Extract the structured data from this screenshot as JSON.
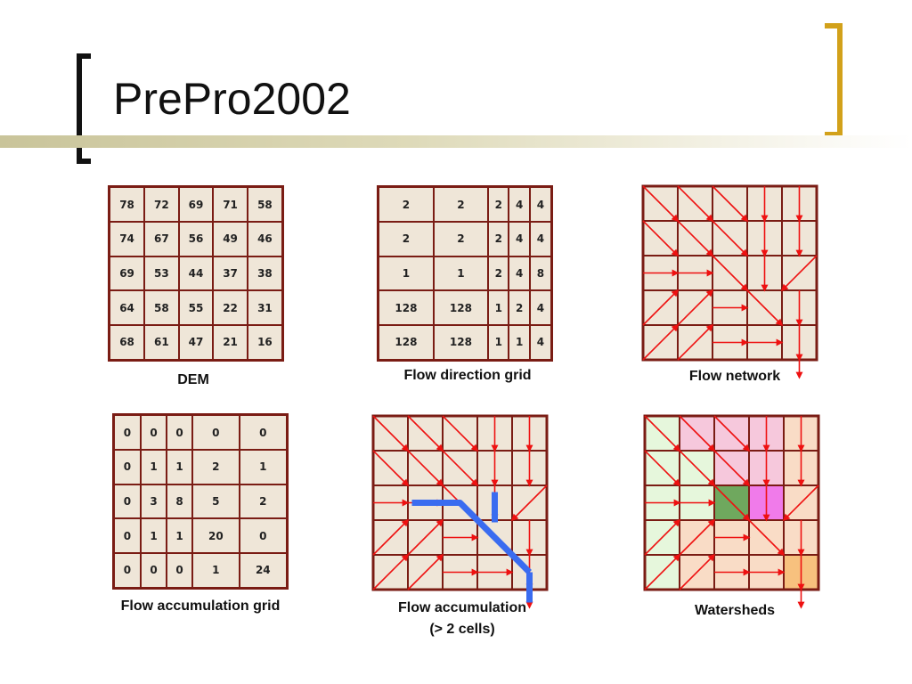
{
  "slide": {
    "title": "PrePro2002"
  },
  "dem": {
    "caption": "DEM",
    "rows": [
      [
        "78",
        "72",
        "69",
        "71",
        "58"
      ],
      [
        "74",
        "67",
        "56",
        "49",
        "46"
      ],
      [
        "69",
        "53",
        "44",
        "37",
        "38"
      ],
      [
        "64",
        "58",
        "55",
        "22",
        "31"
      ],
      [
        "68",
        "61",
        "47",
        "21",
        "16"
      ]
    ]
  },
  "flow_direction": {
    "caption": "Flow direction grid",
    "rows": [
      [
        "2",
        "2",
        "2",
        "4",
        "4"
      ],
      [
        "2",
        "2",
        "2",
        "4",
        "4"
      ],
      [
        "1",
        "1",
        "2",
        "4",
        "8"
      ],
      [
        "128",
        "128",
        "1",
        "2",
        "4"
      ],
      [
        "128",
        "128",
        "1",
        "1",
        "4"
      ]
    ]
  },
  "flow_network": {
    "caption": "Flow network"
  },
  "flow_accumulation_grid": {
    "caption": "Flow accumulation grid",
    "rows": [
      [
        "0",
        "0",
        "0",
        "0",
        "0"
      ],
      [
        "0",
        "1",
        "1",
        "2",
        "1"
      ],
      [
        "0",
        "3",
        "8",
        "5",
        "2"
      ],
      [
        "0",
        "1",
        "1",
        "20",
        "0"
      ],
      [
        "0",
        "0",
        "0",
        "1",
        "24"
      ]
    ]
  },
  "flow_accumulation": {
    "caption_line1": "Flow accumulation",
    "caption_line2": "(> 2 cells)"
  },
  "watersheds": {
    "caption": "Watersheds"
  },
  "colors": {
    "grid_border": "#7a1c14",
    "cell_fill": "#efe6d8",
    "arrow": "#ee1111",
    "stream": "#3a6cf0",
    "title_bar": "#c9c49a",
    "bracket_right": "#d2a11a",
    "ws_green_light": "#e6f7dc",
    "ws_pink": "#f6c8dc",
    "ws_peach": "#f9dcc6",
    "ws_dark_green": "#6fa85e",
    "ws_magenta": "#f07bea",
    "ws_orange": "#f7c17e"
  }
}
